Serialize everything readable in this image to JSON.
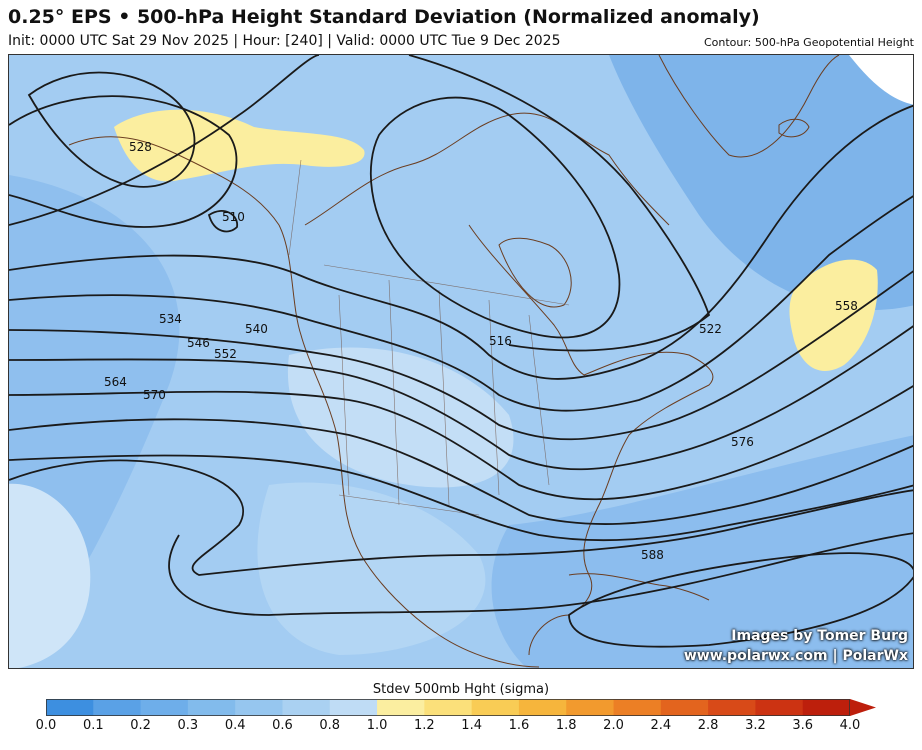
{
  "title": "0.25° EPS • 500-hPa Height Standard Deviation (Normalized anomaly)",
  "subtitle": "Init: 0000 UTC Sat 29 Nov 2025 | Hour: [240] | Valid: 0000 UTC Tue 9 Dec 2025",
  "contour_note": "Contour: 500-hPa Geopotential Height",
  "credits": {
    "line1": "Images by Tomer Burg",
    "line2": "www.polarwx.com | PolarWx"
  },
  "colorbar": {
    "title": "Stdev 500mb Hght (sigma)",
    "ticks": [
      "0.0",
      "0.1",
      "0.2",
      "0.3",
      "0.4",
      "0.6",
      "0.8",
      "1.0",
      "1.2",
      "1.4",
      "1.6",
      "1.8",
      "2.0",
      "2.4",
      "2.8",
      "3.2",
      "3.6",
      "4.0"
    ],
    "colors": [
      "#3d8fe0",
      "#5aa1e6",
      "#6eaeea",
      "#82bbec",
      "#96c6ef",
      "#aad1f2",
      "#bfdcf5",
      "#fbeea0",
      "#fbe07a",
      "#f9cc55",
      "#f6b53c",
      "#f29a2e",
      "#ec7f25",
      "#e3641e",
      "#d84a18",
      "#cc3312",
      "#bd1f0c"
    ]
  },
  "contour_labels": [
    "510",
    "516",
    "522",
    "528",
    "534",
    "540",
    "546",
    "552",
    "558",
    "564",
    "570",
    "576",
    "588"
  ]
}
